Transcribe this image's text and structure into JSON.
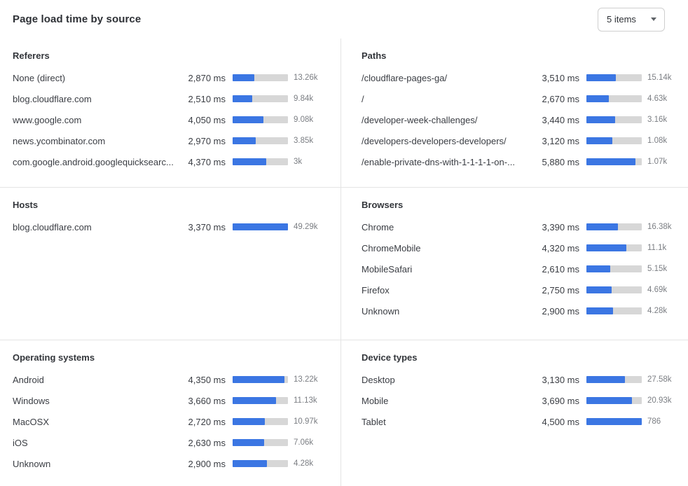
{
  "header": {
    "title": "Page load time by source",
    "items_dropdown": {
      "value": "5 items",
      "icon": "caret-down-icon"
    }
  },
  "colors": {
    "bar_fill": "#3B76E3",
    "bar_track": "#D7D7D7",
    "divider": "#E4E4E4",
    "dropdown_border": "#CFCFCF",
    "text_primary": "#3A3D43",
    "text_muted": "#7B7E83"
  },
  "panels": [
    {
      "id": "referers",
      "title": "Referers",
      "bar_scale_ms": 7200,
      "rows": [
        {
          "label": "None (direct)",
          "ms": 2870,
          "ms_display": "2,870 ms",
          "count": "13.26k"
        },
        {
          "label": "blog.cloudflare.com",
          "ms": 2510,
          "ms_display": "2,510 ms",
          "count": "9.84k"
        },
        {
          "label": "www.google.com",
          "ms": 4050,
          "ms_display": "4,050 ms",
          "count": "9.08k"
        },
        {
          "label": "news.ycombinator.com",
          "ms": 2970,
          "ms_display": "2,970 ms",
          "count": "3.85k"
        },
        {
          "label": "com.google.android.googlequicksearc...",
          "ms": 4370,
          "ms_display": "4,370 ms",
          "count": "3k"
        }
      ]
    },
    {
      "id": "paths",
      "title": "Paths",
      "bar_scale_ms": 6600,
      "rows": [
        {
          "label": "/cloudflare-pages-ga/",
          "ms": 3510,
          "ms_display": "3,510 ms",
          "count": "15.14k"
        },
        {
          "label": "/",
          "ms": 2670,
          "ms_display": "2,670 ms",
          "count": "4.63k"
        },
        {
          "label": "/developer-week-challenges/",
          "ms": 3440,
          "ms_display": "3,440 ms",
          "count": "3.16k"
        },
        {
          "label": "/developers-developers-developers/",
          "ms": 3120,
          "ms_display": "3,120 ms",
          "count": "1.08k"
        },
        {
          "label": "/enable-private-dns-with-1-1-1-1-on-...",
          "ms": 5880,
          "ms_display": "5,880 ms",
          "count": "1.07k"
        }
      ]
    },
    {
      "id": "hosts",
      "title": "Hosts",
      "bar_scale_ms": 3370,
      "rows": [
        {
          "label": "blog.cloudflare.com",
          "ms": 3370,
          "ms_display": "3,370 ms",
          "count": "49.29k"
        }
      ]
    },
    {
      "id": "browsers",
      "title": "Browsers",
      "bar_scale_ms": 6000,
      "rows": [
        {
          "label": "Chrome",
          "ms": 3390,
          "ms_display": "3,390 ms",
          "count": "16.38k"
        },
        {
          "label": "ChromeMobile",
          "ms": 4320,
          "ms_display": "4,320 ms",
          "count": "11.1k"
        },
        {
          "label": "MobileSafari",
          "ms": 2610,
          "ms_display": "2,610 ms",
          "count": "5.15k"
        },
        {
          "label": "Firefox",
          "ms": 2750,
          "ms_display": "2,750 ms",
          "count": "4.69k"
        },
        {
          "label": "Unknown",
          "ms": 2900,
          "ms_display": "2,900 ms",
          "count": "4.28k"
        }
      ]
    },
    {
      "id": "operating-systems",
      "title": "Operating systems",
      "bar_scale_ms": 4640,
      "rows": [
        {
          "label": "Android",
          "ms": 4350,
          "ms_display": "4,350 ms",
          "count": "13.22k"
        },
        {
          "label": "Windows",
          "ms": 3660,
          "ms_display": "3,660 ms",
          "count": "11.13k"
        },
        {
          "label": "MacOSX",
          "ms": 2720,
          "ms_display": "2,720 ms",
          "count": "10.97k"
        },
        {
          "label": "iOS",
          "ms": 2630,
          "ms_display": "2,630 ms",
          "count": "7.06k"
        },
        {
          "label": "Unknown",
          "ms": 2900,
          "ms_display": "2,900 ms",
          "count": "4.28k"
        }
      ]
    },
    {
      "id": "device-types",
      "title": "Device types",
      "bar_scale_ms": 4500,
      "rows": [
        {
          "label": "Desktop",
          "ms": 3130,
          "ms_display": "3,130 ms",
          "count": "27.58k"
        },
        {
          "label": "Mobile",
          "ms": 3690,
          "ms_display": "3,690 ms",
          "count": "20.93k"
        },
        {
          "label": "Tablet",
          "ms": 4500,
          "ms_display": "4,500 ms",
          "count": "786"
        }
      ]
    }
  ],
  "chart_data": [
    {
      "type": "bar",
      "title": "Referers",
      "orientation": "horizontal",
      "categories": [
        "None (direct)",
        "blog.cloudflare.com",
        "www.google.com",
        "news.ycombinator.com",
        "com.google.android.googlequicksearc..."
      ],
      "values": [
        2870,
        2510,
        4050,
        2970,
        4370
      ],
      "value_unit": "ms",
      "visit_counts": [
        "13.26k",
        "9.84k",
        "9.08k",
        "3.85k",
        "3k"
      ],
      "xlim": [
        0,
        7200
      ]
    },
    {
      "type": "bar",
      "title": "Paths",
      "orientation": "horizontal",
      "categories": [
        "/cloudflare-pages-ga/",
        "/",
        "/developer-week-challenges/",
        "/developers-developers-developers/",
        "/enable-private-dns-with-1-1-1-1-on-..."
      ],
      "values": [
        3510,
        2670,
        3440,
        3120,
        5880
      ],
      "value_unit": "ms",
      "visit_counts": [
        "15.14k",
        "4.63k",
        "3.16k",
        "1.08k",
        "1.07k"
      ],
      "xlim": [
        0,
        6600
      ]
    },
    {
      "type": "bar",
      "title": "Hosts",
      "orientation": "horizontal",
      "categories": [
        "blog.cloudflare.com"
      ],
      "values": [
        3370
      ],
      "value_unit": "ms",
      "visit_counts": [
        "49.29k"
      ],
      "xlim": [
        0,
        3370
      ]
    },
    {
      "type": "bar",
      "title": "Browsers",
      "orientation": "horizontal",
      "categories": [
        "Chrome",
        "ChromeMobile",
        "MobileSafari",
        "Firefox",
        "Unknown"
      ],
      "values": [
        3390,
        4320,
        2610,
        2750,
        2900
      ],
      "value_unit": "ms",
      "visit_counts": [
        "16.38k",
        "11.1k",
        "5.15k",
        "4.69k",
        "4.28k"
      ],
      "xlim": [
        0,
        6000
      ]
    },
    {
      "type": "bar",
      "title": "Operating systems",
      "orientation": "horizontal",
      "categories": [
        "Android",
        "Windows",
        "MacOSX",
        "iOS",
        "Unknown"
      ],
      "values": [
        4350,
        3660,
        2720,
        2630,
        2900
      ],
      "value_unit": "ms",
      "visit_counts": [
        "13.22k",
        "11.13k",
        "10.97k",
        "7.06k",
        "4.28k"
      ],
      "xlim": [
        0,
        4640
      ]
    },
    {
      "type": "bar",
      "title": "Device types",
      "orientation": "horizontal",
      "categories": [
        "Desktop",
        "Mobile",
        "Tablet"
      ],
      "values": [
        3130,
        3690,
        4500
      ],
      "value_unit": "ms",
      "visit_counts": [
        "27.58k",
        "20.93k",
        "786"
      ],
      "xlim": [
        0,
        4500
      ]
    }
  ]
}
